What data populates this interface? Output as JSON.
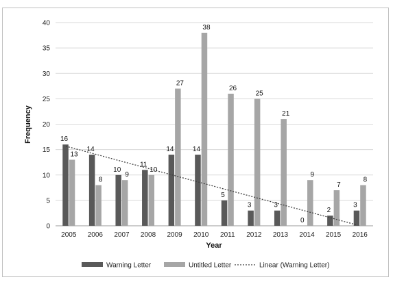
{
  "chart_data": {
    "type": "bar",
    "title": "",
    "xlabel": "Year",
    "ylabel": "Frequency",
    "ylim": [
      0,
      40
    ],
    "yticks": [
      0,
      5,
      10,
      15,
      20,
      25,
      30,
      35,
      40
    ],
    "grid": true,
    "legend_position": "bottom",
    "categories": [
      "2005",
      "2006",
      "2007",
      "2008",
      "2009",
      "2010",
      "2011",
      "2012",
      "2013",
      "2014",
      "2015",
      "2016"
    ],
    "series": [
      {
        "name": "Warning Letter",
        "color": "#595959",
        "values": [
          16,
          14,
          10,
          11,
          14,
          14,
          5,
          3,
          3,
          0,
          2,
          3
        ]
      },
      {
        "name": "Untitled Letter",
        "color": "#a6a6a6",
        "values": [
          13,
          8,
          9,
          10,
          27,
          38,
          26,
          25,
          21,
          9,
          7,
          8
        ]
      }
    ],
    "trendline": {
      "name": "Linear (Warning Letter)",
      "type": "linear",
      "of_series": "Warning Letter",
      "style": "dotted",
      "color": "#404040"
    }
  }
}
